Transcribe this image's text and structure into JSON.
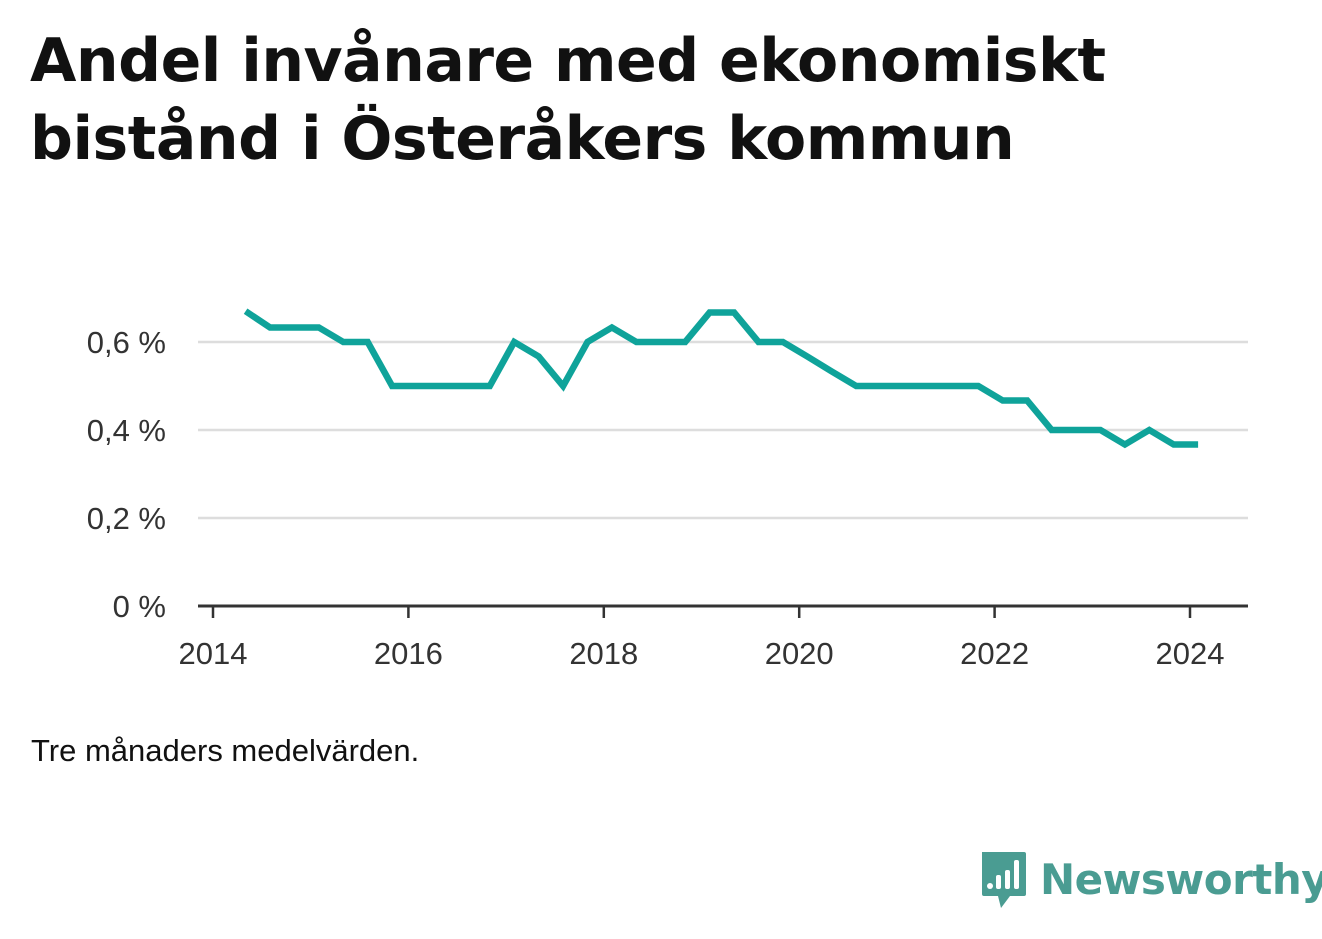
{
  "header": {
    "title": "Andel invånare med ekonomiskt bistånd i Österåkers kommun"
  },
  "note": "Tre månaders medelvärden.",
  "brand": {
    "name": "Newsworthy",
    "icon": "newsworthy-logo-icon",
    "color": "#4a9c92"
  },
  "chart_data": {
    "type": "line",
    "title": "Andel invånare med ekonomiskt bistånd i Österåkers kommun",
    "xlabel": "",
    "ylabel": "",
    "xlim": [
      2014.0,
      2024.25
    ],
    "ylim": [
      0,
      0.7
    ],
    "grid": true,
    "legend": "none",
    "x_ticks": [
      {
        "value": 2014,
        "label": "2014"
      },
      {
        "value": 2016,
        "label": "2016"
      },
      {
        "value": 2018,
        "label": "2018"
      },
      {
        "value": 2020,
        "label": "2020"
      },
      {
        "value": 2022,
        "label": "2022"
      },
      {
        "value": 2024,
        "label": "2024"
      }
    ],
    "y_ticks": [
      {
        "value": 0,
        "label": "0 %"
      },
      {
        "value": 0.2,
        "label": "0,2 %"
      },
      {
        "value": 0.4,
        "label": "0,4 %"
      },
      {
        "value": 0.6,
        "label": "0,6 %"
      }
    ],
    "series": [
      {
        "color": "#0fa39a",
        "x": [
          "2014-05",
          "2014-08",
          "2014-11",
          "2015-02",
          "2015-05",
          "2015-08",
          "2015-11",
          "2016-02",
          "2016-05",
          "2016-08",
          "2016-11",
          "2017-02",
          "2017-05",
          "2017-08",
          "2017-11",
          "2018-02",
          "2018-05",
          "2018-08",
          "2018-11",
          "2019-02",
          "2019-05",
          "2019-08",
          "2019-11",
          "2020-02",
          "2020-05",
          "2020-08",
          "2020-11",
          "2021-02",
          "2021-05",
          "2021-08",
          "2021-11",
          "2022-02",
          "2022-05",
          "2022-08",
          "2022-11",
          "2023-02",
          "2023-05",
          "2023-08",
          "2023-11",
          "2024-02"
        ],
        "values": [
          0.67,
          0.633,
          0.633,
          0.633,
          0.6,
          0.6,
          0.5,
          0.5,
          0.5,
          0.5,
          0.5,
          0.6,
          0.567,
          0.5,
          0.6,
          0.633,
          0.6,
          0.6,
          0.6,
          0.667,
          0.667,
          0.6,
          0.6,
          0.567,
          0.533,
          0.5,
          0.5,
          0.5,
          0.5,
          0.5,
          0.5,
          0.467,
          0.467,
          0.4,
          0.4,
          0.4,
          0.367,
          0.4,
          0.367,
          0.367
        ]
      }
    ]
  }
}
